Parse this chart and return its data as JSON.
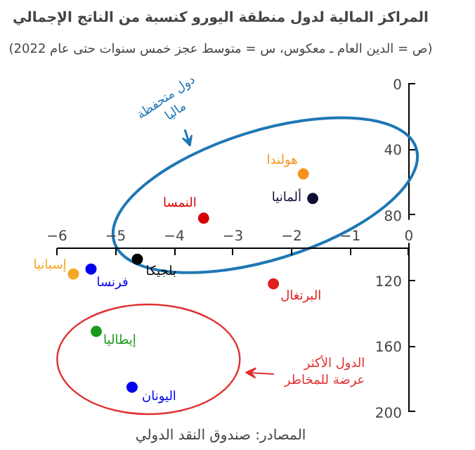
{
  "chart_data": {
    "type": "scatter",
    "title": "المراكز المالية لدول منطقة اليورو كنسبة من الناتج الإجمالي",
    "subtitle": "(ص = الدين العام ـ معكوس، س = متوسط عجز خمس سنوات حتى عام 2022)",
    "series": [
      {
        "name": "هولندا",
        "color": "#f7931e",
        "x": [
          -1.8
        ],
        "values": [
          55
        ]
      },
      {
        "name": "ألمانيا",
        "color": "#0d0d33",
        "x": [
          -1.64
        ],
        "values": [
          70
        ]
      },
      {
        "name": "النمسا",
        "color": "#d40000",
        "x": [
          -3.5
        ],
        "values": [
          82
        ]
      },
      {
        "name": "بلجيكا",
        "color": "#000000",
        "x": [
          -4.63
        ],
        "values": [
          107
        ]
      },
      {
        "name": "فرنسا",
        "color": "#0000ee",
        "x": [
          -5.42
        ],
        "values": [
          113
        ]
      },
      {
        "name": "إسبانيا",
        "color": "#f5a623",
        "x": [
          -5.72
        ],
        "values": [
          116
        ]
      },
      {
        "name": "البرتغال",
        "color": "#e02020",
        "x": [
          -2.31
        ],
        "values": [
          122
        ]
      },
      {
        "name": "إيطاليا",
        "color": "#1a9a1a",
        "x": [
          -5.33
        ],
        "values": [
          151
        ]
      },
      {
        "name": "اليونان",
        "color": "#0000ee",
        "x": [
          -4.72
        ],
        "values": [
          185
        ]
      }
    ],
    "xlim": [
      -6,
      0
    ],
    "xticks": [
      -6,
      -5,
      -4,
      -3,
      -2,
      -1,
      0
    ],
    "ylim": [
      200,
      0
    ],
    "yticks": [
      0,
      40,
      80,
      120,
      160,
      200
    ],
    "marker": "circle",
    "grid": false,
    "annotations": [
      "دول متحفظة\nماليا",
      "الدول الأكثر\nعرضة للمخاطر",
      "المصادر: صندوق النقد الدولي"
    ]
  }
}
